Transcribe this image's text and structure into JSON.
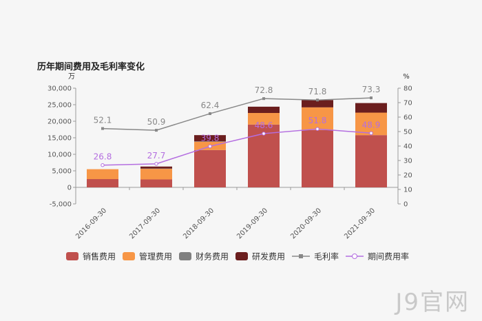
{
  "chart_data": {
    "type": "bar",
    "title": "历年期间费用及毛利率变化",
    "left_unit": "万",
    "right_unit": "%",
    "categories": [
      "2016-09-30",
      "2017-09-30",
      "2018-09-30",
      "2019-09-30",
      "2020-09-30",
      "2021-09-30"
    ],
    "left_axis": {
      "min": -5000,
      "max": 30000,
      "ticks": [
        "-5,000",
        "0",
        "5,000",
        "10,000",
        "15,000",
        "20,000",
        "25,000",
        "30,000"
      ],
      "tick_values": [
        -5000,
        0,
        5000,
        10000,
        15000,
        20000,
        25000,
        30000
      ]
    },
    "right_axis": {
      "min": 0,
      "max": 80,
      "ticks": [
        "0",
        "10",
        "20",
        "30",
        "40",
        "50",
        "60",
        "70",
        "80"
      ],
      "tick_values": [
        0,
        10,
        20,
        30,
        40,
        50,
        60,
        70,
        80
      ]
    },
    "bar_series": [
      {
        "name": "销售费用",
        "color": "#c0504d",
        "values": [
          2500,
          2400,
          11300,
          19000,
          17300,
          15800
        ]
      },
      {
        "name": "管理费用",
        "color": "#f79646",
        "values": [
          3000,
          3200,
          2500,
          3500,
          6900,
          6800
        ]
      },
      {
        "name": "财务费用",
        "color": "#7f7f7f",
        "values": [
          0,
          100,
          100,
          0,
          0,
          0
        ]
      },
      {
        "name": "研发费用",
        "color": "#6b1e1e",
        "values": [
          0,
          600,
          1900,
          1900,
          2200,
          2900
        ]
      }
    ],
    "line_series": [
      {
        "name": "毛利率",
        "color": "#888888",
        "marker": "square",
        "values": [
          52.1,
          50.9,
          62.4,
          72.8,
          71.8,
          73.3
        ],
        "labels": [
          "52.1",
          "50.9",
          "62.4",
          "72.8",
          "71.8",
          "73.3"
        ]
      },
      {
        "name": "期间费用率",
        "color": "#b46ee0",
        "marker": "circle",
        "values": [
          26.8,
          27.7,
          39.8,
          48.6,
          51.8,
          48.9
        ],
        "labels": [
          "26.8",
          "27.7",
          "39.8",
          "48.6",
          "51.8",
          "48.9"
        ]
      }
    ],
    "legend_position": "bottom",
    "grid": false
  },
  "watermark": "J9官网"
}
